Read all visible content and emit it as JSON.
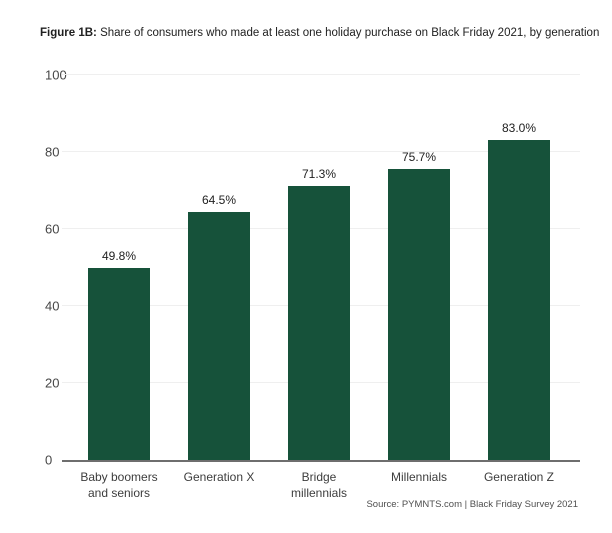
{
  "title": {
    "prefix": "Figure 1B:",
    "rest": " Share of consumers who made at least one holiday purchase on Black Friday 2021, by generation"
  },
  "source": "Source: PYMNTS.com | Black Friday Survey 2021",
  "colors": {
    "bar": "#16523A",
    "gridline": "#efefef",
    "axis": "#6e6e6e"
  },
  "chart_data": {
    "type": "bar",
    "title": "Figure 1B: Share of consumers who made at least one holiday purchase on Black Friday 2021, by generation",
    "categories": [
      "Baby boomers and seniors",
      "Generation X",
      "Bridge millennials",
      "Millennials",
      "Generation Z"
    ],
    "values": [
      49.8,
      64.5,
      71.3,
      75.7,
      83.0
    ],
    "value_labels": [
      "49.8%",
      "64.5%",
      "71.3%",
      "75.7%",
      "83.0%"
    ],
    "xlabel": "",
    "ylabel": "",
    "ylim": [
      0,
      100
    ],
    "yticks": [
      0,
      20,
      40,
      60,
      80,
      100
    ],
    "grid": true,
    "legend": "none",
    "bar_color": "#16523A",
    "source": "Source: PYMNTS.com | Black Friday Survey 2021"
  }
}
